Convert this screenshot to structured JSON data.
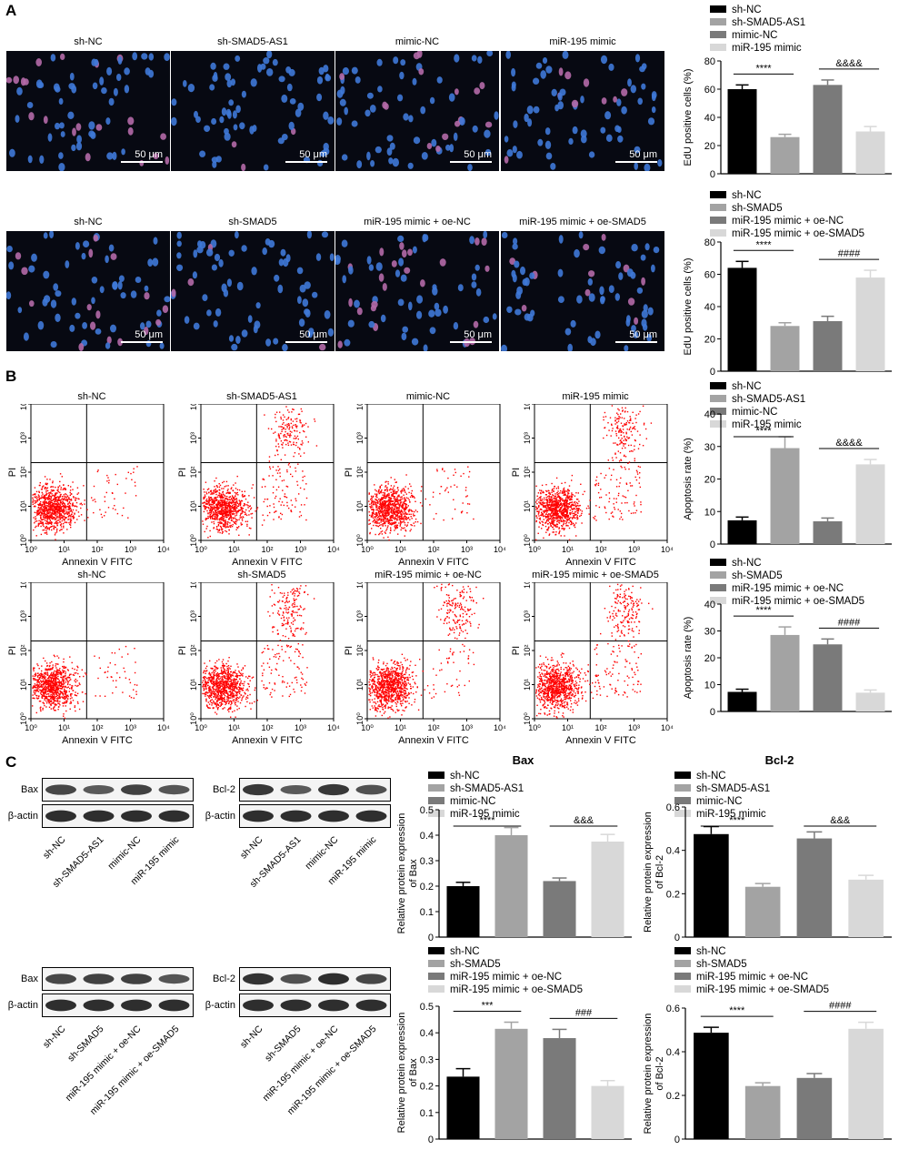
{
  "panels": {
    "a": "A",
    "b": "B",
    "c": "C"
  },
  "micrographs": {
    "row1": [
      "sh-NC",
      "sh-SMAD5-AS1",
      "mimic-NC",
      "miR-195 mimic"
    ],
    "row2": [
      "sh-NC",
      "sh-SMAD5",
      "miR-195 mimic + oe-NC",
      "miR-195 mimic + oe-SMAD5"
    ],
    "scale_label": "50 μm"
  },
  "flow": {
    "row1": [
      "sh-NC",
      "sh-SMAD5-AS1",
      "mimic-NC",
      "miR-195 mimic"
    ],
    "row2": [
      "sh-NC",
      "sh-SMAD5",
      "miR-195 mimic + oe-NC",
      "miR-195 mimic + oe-SMAD5"
    ],
    "xlabel": "Annexin V FITC",
    "ylabel": "PI",
    "ticks": [
      "10⁰",
      "10¹",
      "10²",
      "10³",
      "10⁴"
    ]
  },
  "blots": {
    "bax": "Bax",
    "bcl2": "Bcl-2",
    "actin": "β-actin",
    "lanes1": [
      "sh-NC",
      "sh-SMAD5-AS1",
      "mimic-NC",
      "miR-195 mimic"
    ],
    "lanes2": [
      "sh-NC",
      "sh-SMAD5",
      "miR-195 mimic + oe-NC",
      "miR-195 mimic + oe-SMAD5"
    ]
  },
  "colors": [
    "#000000",
    "#a3a3a3",
    "#7a7a7a",
    "#d8d8d8"
  ],
  "chart_data": [
    {
      "id": "edu1",
      "type": "bar",
      "categories": [
        "sh-NC",
        "sh-SMAD5-AS1",
        "mimic-NC",
        "miR-195 mimic"
      ],
      "values": [
        60,
        26,
        63,
        30
      ],
      "errors": [
        3,
        2,
        3.5,
        3.5
      ],
      "ylabel": "EdU positive cells (%)",
      "ylim": [
        0,
        80
      ],
      "yticks": [
        0,
        20,
        40,
        60,
        80
      ],
      "title": "",
      "sig": [
        {
          "from": 0,
          "to": 1,
          "label": "****"
        },
        {
          "from": 2,
          "to": 3,
          "label": "&&&&"
        }
      ]
    },
    {
      "id": "edu2",
      "type": "bar",
      "categories": [
        "sh-NC",
        "sh-SMAD5",
        "miR-195 mimic + oe-NC",
        "miR-195 mimic + oe-SMAD5"
      ],
      "values": [
        64,
        28,
        31,
        58
      ],
      "errors": [
        4,
        2,
        3,
        4.5
      ],
      "ylabel": "EdU positive cells (%)",
      "ylim": [
        0,
        80
      ],
      "yticks": [
        0,
        20,
        40,
        60,
        80
      ],
      "title": "",
      "sig": [
        {
          "from": 0,
          "to": 1,
          "label": "****"
        },
        {
          "from": 2,
          "to": 3,
          "label": "####"
        }
      ]
    },
    {
      "id": "apo1",
      "type": "bar",
      "categories": [
        "sh-NC",
        "sh-SMAD5-AS1",
        "mimic-NC",
        "miR-195 mimic"
      ],
      "values": [
        7.3,
        29.5,
        7,
        24.5
      ],
      "errors": [
        1,
        3.5,
        1,
        1.5
      ],
      "ylabel": "Apoptosis rate (%)",
      "ylim": [
        0,
        40
      ],
      "yticks": [
        0,
        10,
        20,
        30,
        40
      ],
      "title": "",
      "sig": [
        {
          "from": 0,
          "to": 1,
          "label": "****"
        },
        {
          "from": 2,
          "to": 3,
          "label": "&&&&"
        }
      ]
    },
    {
      "id": "apo2",
      "type": "bar",
      "categories": [
        "sh-NC",
        "sh-SMAD5",
        "miR-195 mimic + oe-NC",
        "miR-195 mimic + oe-SMAD5"
      ],
      "values": [
        7.3,
        28.5,
        25,
        7
      ],
      "errors": [
        1,
        3,
        2,
        1
      ],
      "ylabel": "Apoptosis rate (%)",
      "ylim": [
        0,
        40
      ],
      "yticks": [
        0,
        10,
        20,
        30,
        40
      ],
      "title": "",
      "sig": [
        {
          "from": 0,
          "to": 1,
          "label": "****"
        },
        {
          "from": 2,
          "to": 3,
          "label": "####"
        }
      ]
    },
    {
      "id": "bax1",
      "type": "bar",
      "categories": [
        "sh-NC",
        "sh-SMAD5-AS1",
        "mimic-NC",
        "miR-195 mimic"
      ],
      "values": [
        0.2,
        0.4,
        0.22,
        0.375
      ],
      "errors": [
        0.015,
        0.03,
        0.012,
        0.028
      ],
      "ylabel": "Relative protein expression of Bax",
      "ylim": [
        0,
        0.5
      ],
      "yticks": [
        0,
        0.1,
        0.2,
        0.3,
        0.4,
        0.5
      ],
      "title": "Bax",
      "sig": [
        {
          "from": 0,
          "to": 1,
          "label": "****"
        },
        {
          "from": 2,
          "to": 3,
          "label": "&&&"
        }
      ]
    },
    {
      "id": "bcl1",
      "type": "bar",
      "categories": [
        "sh-NC",
        "sh-SMAD5-AS1",
        "mimic-NC",
        "miR-195 mimic"
      ],
      "values": [
        0.475,
        0.232,
        0.455,
        0.265
      ],
      "errors": [
        0.035,
        0.015,
        0.03,
        0.02
      ],
      "ylabel": "Relative protein expression of Bcl-2",
      "ylim": [
        0,
        0.6
      ],
      "yticks": [
        0,
        0.2,
        0.4,
        0.6
      ],
      "title": "Bcl-2",
      "sig": [
        {
          "from": 0,
          "to": 1,
          "label": "****"
        },
        {
          "from": 2,
          "to": 3,
          "label": "&&&"
        }
      ]
    },
    {
      "id": "bax2",
      "type": "bar",
      "categories": [
        "sh-NC",
        "sh-SMAD5",
        "miR-195 mimic + oe-NC",
        "miR-195 mimic + oe-SMAD5"
      ],
      "values": [
        0.235,
        0.415,
        0.38,
        0.2
      ],
      "errors": [
        0.03,
        0.025,
        0.033,
        0.02
      ],
      "ylabel": "Relative protein expression of Bax",
      "ylim": [
        0,
        0.5
      ],
      "yticks": [
        0,
        0.1,
        0.2,
        0.3,
        0.4,
        0.5
      ],
      "title": "",
      "sig": [
        {
          "from": 0,
          "to": 1,
          "label": "***"
        },
        {
          "from": 2,
          "to": 3,
          "label": "###"
        }
      ]
    },
    {
      "id": "bcl2",
      "type": "bar",
      "categories": [
        "sh-NC",
        "sh-SMAD5",
        "miR-195 mimic + oe-NC",
        "miR-195 mimic + oe-SMAD5"
      ],
      "values": [
        0.487,
        0.243,
        0.28,
        0.505
      ],
      "errors": [
        0.025,
        0.015,
        0.02,
        0.03
      ],
      "ylabel": "Relative protein expression of Bcl-2",
      "ylim": [
        0,
        0.6
      ],
      "yticks": [
        0,
        0.2,
        0.4,
        0.6
      ],
      "title": "",
      "sig": [
        {
          "from": 0,
          "to": 1,
          "label": "****"
        },
        {
          "from": 2,
          "to": 3,
          "label": "####"
        }
      ]
    }
  ]
}
